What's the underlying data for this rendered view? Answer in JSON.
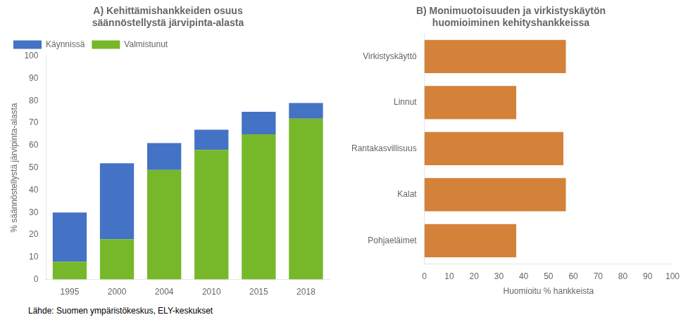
{
  "chart_data": [
    {
      "type": "bar",
      "title": "A) Kehittämishankkeiden osuus\nsäännöstellystä järvipinta-alasta",
      "ylabel": "% säännöstellystä järvipinta-alasta",
      "categories": [
        "1995",
        "2000",
        "2004",
        "2010",
        "2015",
        "2018"
      ],
      "series": [
        {
          "name": "Valmistunut",
          "color": "#76b82a",
          "values": [
            8,
            18,
            49,
            58,
            65,
            72
          ]
        },
        {
          "name": "Käynnissä",
          "color": "#4472c4",
          "values": [
            22,
            34,
            12,
            9,
            10,
            7
          ]
        }
      ],
      "stacked": true,
      "ylim": [
        0,
        100
      ],
      "yticks": [
        0,
        10,
        20,
        30,
        40,
        50,
        60,
        70,
        80,
        90,
        100
      ],
      "grid": false,
      "legend": "upper left",
      "annotations": [
        "Lähde: Suomen ympäristökeskus, ELY-keskukset"
      ]
    },
    {
      "type": "bar",
      "orientation": "horizontal",
      "title": "B) Monimuotoisuuden ja virkistyskäytön\nhuomioiminen kehityshankkeissa",
      "xlabel": "Huomioitu % hankkeista",
      "categories": [
        "Pohjaeläimet",
        "Kalat",
        "Rantakasvillisuus",
        "Linnut",
        "Virkistyskäyttö"
      ],
      "values": [
        37,
        57,
        56,
        37,
        57
      ],
      "color": "#d4813a",
      "xlim": [
        0,
        100
      ],
      "xticks": [
        0,
        10,
        20,
        30,
        40,
        50,
        60,
        70,
        80,
        90,
        100
      ],
      "grid": false
    }
  ]
}
